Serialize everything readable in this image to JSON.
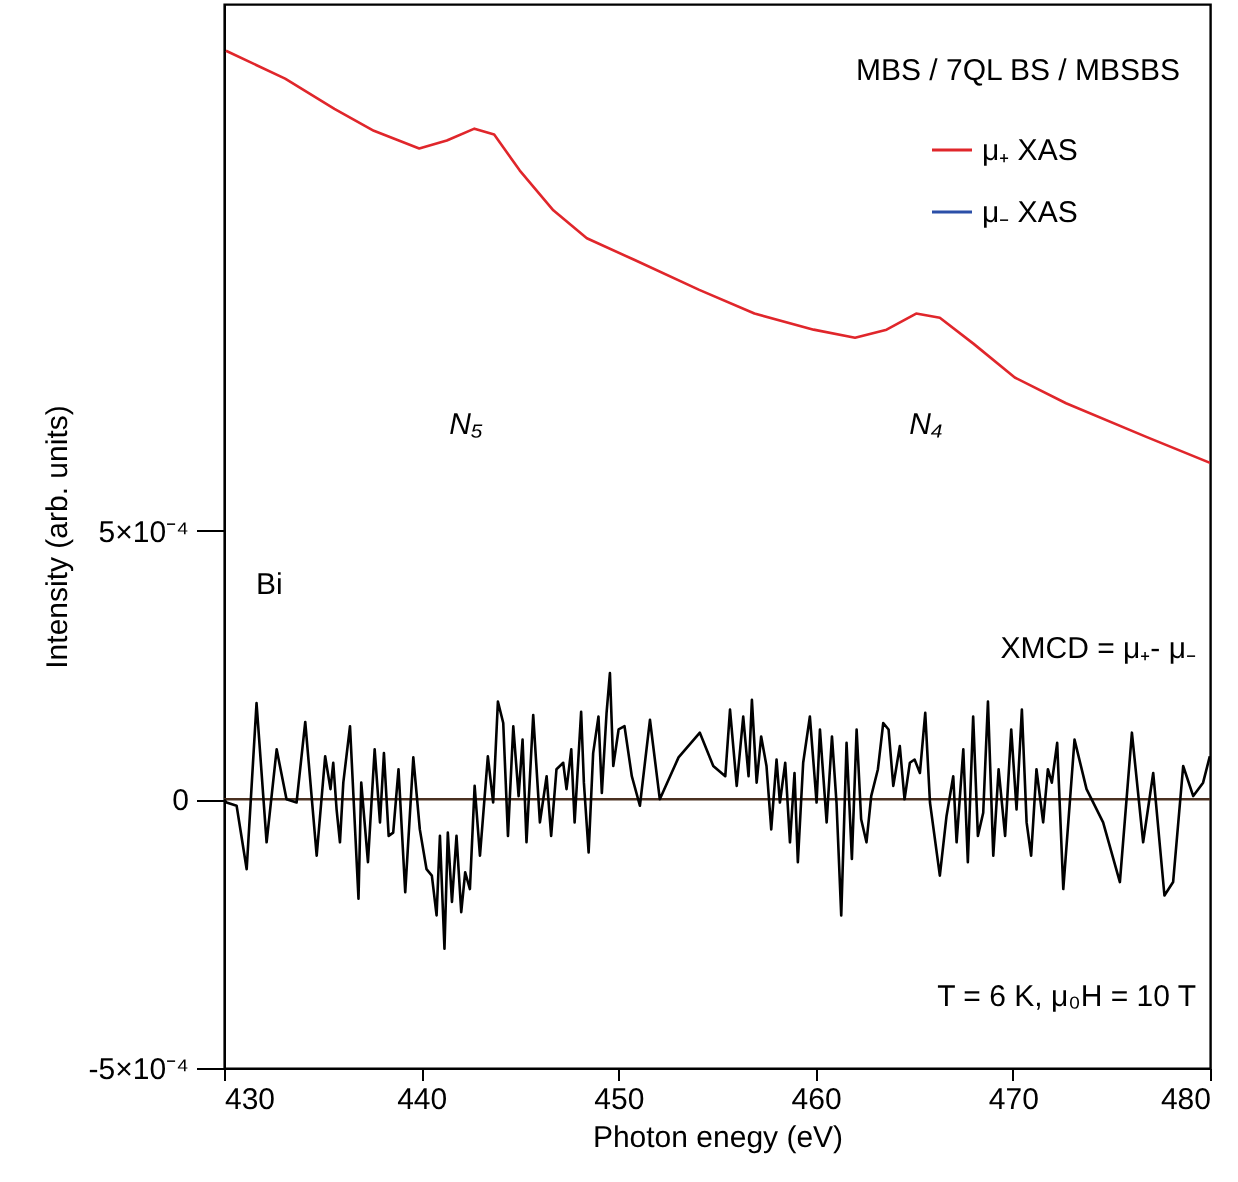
{
  "chart_data": {
    "type": "line",
    "xlabel": "Photon enegy (eV)",
    "ylabel": "Intensity (arb. units)",
    "xlim": [
      430,
      480
    ],
    "xticks": [
      430,
      440,
      450,
      460,
      470,
      480
    ],
    "ylim": [
      -0.0005,
      0.00148
    ],
    "yticks": [
      {
        "value": 0.0005,
        "label": "5×10⁻⁴"
      },
      0,
      {
        "value": -0.0005,
        "label": "-5×10⁻⁴"
      }
    ],
    "grid": false,
    "legend": "top right",
    "line_style": "solid",
    "marker": "none",
    "series": [
      {
        "name": "μ₊ XAS",
        "color": "#e0262b",
        "x": [
          430.1,
          433.1,
          435.6,
          437.6,
          439.9,
          441.3,
          442.7,
          443.7,
          445.0,
          446.7,
          448.4,
          450.8,
          454.1,
          456.9,
          459.9,
          462.0,
          463.6,
          465.1,
          466.3,
          468.0,
          470.1,
          472.7,
          476.8,
          480.0
        ],
        "values": [
          0.001393,
          0.001341,
          0.001285,
          0.001244,
          0.001211,
          0.001226,
          0.001248,
          0.001237,
          0.00117,
          0.001096,
          0.001044,
          0.001004,
          0.000948,
          0.000904,
          0.000874,
          0.000859,
          0.000874,
          0.000904,
          0.000896,
          0.000848,
          0.000785,
          0.000737,
          0.000674,
          0.000626
        ]
      },
      {
        "name": "μ₋ XAS",
        "color": "#2b4fa8",
        "values": [
          null,
          null,
          null,
          null,
          null,
          null,
          null,
          null,
          null,
          null,
          null,
          null,
          null,
          null,
          null,
          null,
          null,
          null,
          null,
          null,
          null,
          null,
          null,
          null
        ]
      },
      {
        "color": "#000000",
        "x": [
          430.0,
          430.13,
          430.64,
          431.15,
          431.65,
          432.16,
          432.67,
          433.17,
          433.68,
          434.12,
          434.7,
          435.13,
          435.4,
          435.54,
          435.71,
          435.88,
          436.05,
          436.39,
          436.82,
          436.96,
          437.3,
          437.64,
          437.91,
          438.11,
          438.35,
          438.58,
          438.85,
          439.19,
          439.6,
          439.93,
          440.27,
          440.54,
          440.78,
          440.95,
          441.18,
          441.35,
          441.56,
          441.79,
          442.03,
          442.23,
          442.47,
          442.71,
          442.98,
          443.38,
          443.65,
          443.89,
          444.16,
          444.4,
          444.67,
          444.94,
          445.14,
          445.34,
          445.68,
          446.02,
          446.36,
          446.59,
          446.86,
          447.2,
          447.37,
          447.61,
          447.78,
          448.11,
          448.25,
          448.49,
          448.72,
          448.99,
          449.16,
          449.4,
          449.57,
          449.74,
          450.01,
          450.31,
          450.68,
          451.09,
          451.6,
          452.1,
          453.05,
          454.13,
          454.81,
          455.42,
          455.66,
          456.0,
          456.33,
          456.6,
          456.77,
          457.01,
          457.24,
          457.51,
          457.75,
          458.02,
          458.19,
          458.46,
          458.7,
          458.93,
          459.1,
          459.37,
          459.71,
          460.05,
          460.22,
          460.56,
          460.83,
          461.06,
          461.3,
          461.57,
          461.84,
          462.08,
          462.31,
          462.58,
          462.82,
          463.16,
          463.43,
          463.7,
          463.94,
          464.27,
          464.51,
          464.78,
          465.02,
          465.29,
          465.56,
          465.8,
          466.3,
          466.64,
          466.98,
          467.15,
          467.49,
          467.72,
          467.99,
          468.23,
          468.5,
          468.74,
          469.01,
          469.28,
          469.61,
          469.92,
          470.19,
          470.46,
          470.7,
          470.93,
          471.2,
          471.54,
          471.78,
          471.98,
          472.25,
          472.56,
          473.13,
          473.74,
          474.58,
          475.43,
          476.04,
          476.61,
          477.12,
          477.69,
          478.13,
          478.64,
          479.15,
          479.65,
          479.99
        ],
        "values": [
          0,
          -6e-06,
          -1.2e-05,
          -0.00013,
          0.000179,
          -8e-05,
          9.3e-05,
          0,
          -6e-06,
          0.000144,
          -0.000105,
          8e-05,
          1.9e-05,
          6.8e-05,
          -1.9e-05,
          -8e-05,
          3.1e-05,
          0.000136,
          -0.000185,
          3.1e-05,
          -0.000117,
          9.3e-05,
          -4.3e-05,
          8.6e-05,
          -6.8e-05,
          -6.2e-05,
          5.6e-05,
          -0.000173,
          7.8e-05,
          -5.6e-05,
          -0.00013,
          -0.000142,
          -0.000216,
          -6.8e-05,
          -0.000278,
          -6.2e-05,
          -0.000191,
          -6.8e-05,
          -0.00021,
          -0.000136,
          -0.000167,
          2.5e-05,
          -0.000105,
          8e-05,
          -6e-06,
          0.000182,
          0.000142,
          -6.8e-05,
          0.000136,
          6e-06,
          0.000111,
          -8e-05,
          0.000157,
          -4.3e-05,
          4.3e-05,
          -6.8e-05,
          5.6e-05,
          6.8e-05,
          1.9e-05,
          9.3e-05,
          -4.3e-05,
          0.000163,
          3.1e-05,
          -9.9e-05,
          8.6e-05,
          0.000154,
          1.2e-05,
          0.000161,
          0.000235,
          6.2e-05,
          0.00013,
          0.000136,
          4.3e-05,
          -1.2e-05,
          0.000148,
          0,
          7.8e-05,
          0.000124,
          6.2e-05,
          4.3e-05,
          0.000167,
          2.5e-05,
          0.000154,
          4.3e-05,
          0.000185,
          3.1e-05,
          0.000117,
          6.2e-05,
          -5.6e-05,
          7.4e-05,
          -6e-06,
          6.8e-05,
          -8e-05,
          4.9e-05,
          -0.000117,
          6.8e-05,
          0.000154,
          -6e-06,
          0.00013,
          -4.3e-05,
          0.000117,
          -6e-06,
          -0.000216,
          0.000105,
          -0.000111,
          0.00013,
          -3.7e-05,
          -8e-05,
          6e-06,
          5.6e-05,
          0.000142,
          0.00013,
          2.5e-05,
          9.9e-05,
          0,
          6.8e-05,
          7.4e-05,
          4.9e-05,
          0.000161,
          -6e-06,
          -0.000142,
          -3.1e-05,
          4.3e-05,
          -8e-05,
          9.3e-05,
          -0.000117,
          0.000154,
          -6.8e-05,
          -2.5e-05,
          0.000182,
          -0.000105,
          5.6e-05,
          -6.8e-05,
          0.00013,
          -1.9e-05,
          0.000167,
          -4.3e-05,
          -0.000105,
          5.6e-05,
          -4.3e-05,
          5.6e-05,
          3.1e-05,
          0.000105,
          -0.000167,
          0.000111,
          1.9e-05,
          -4.3e-05,
          -0.000154,
          0.000124,
          -8e-05,
          4.9e-05,
          -0.000179,
          -0.000154,
          6.2e-05,
          6e-06,
          3.1e-05,
          8e-05
        ]
      }
    ],
    "ref_lines": [
      {
        "axis": "y",
        "value": 0,
        "color": "#4a3020"
      }
    ],
    "annotations": [
      "MBS / 7QL BS / MBSBS",
      "N₅",
      "N₄",
      "Bi",
      "XMCD = μ₊- μ₋",
      "T = 6 K, μ₀H = 10 T"
    ]
  }
}
